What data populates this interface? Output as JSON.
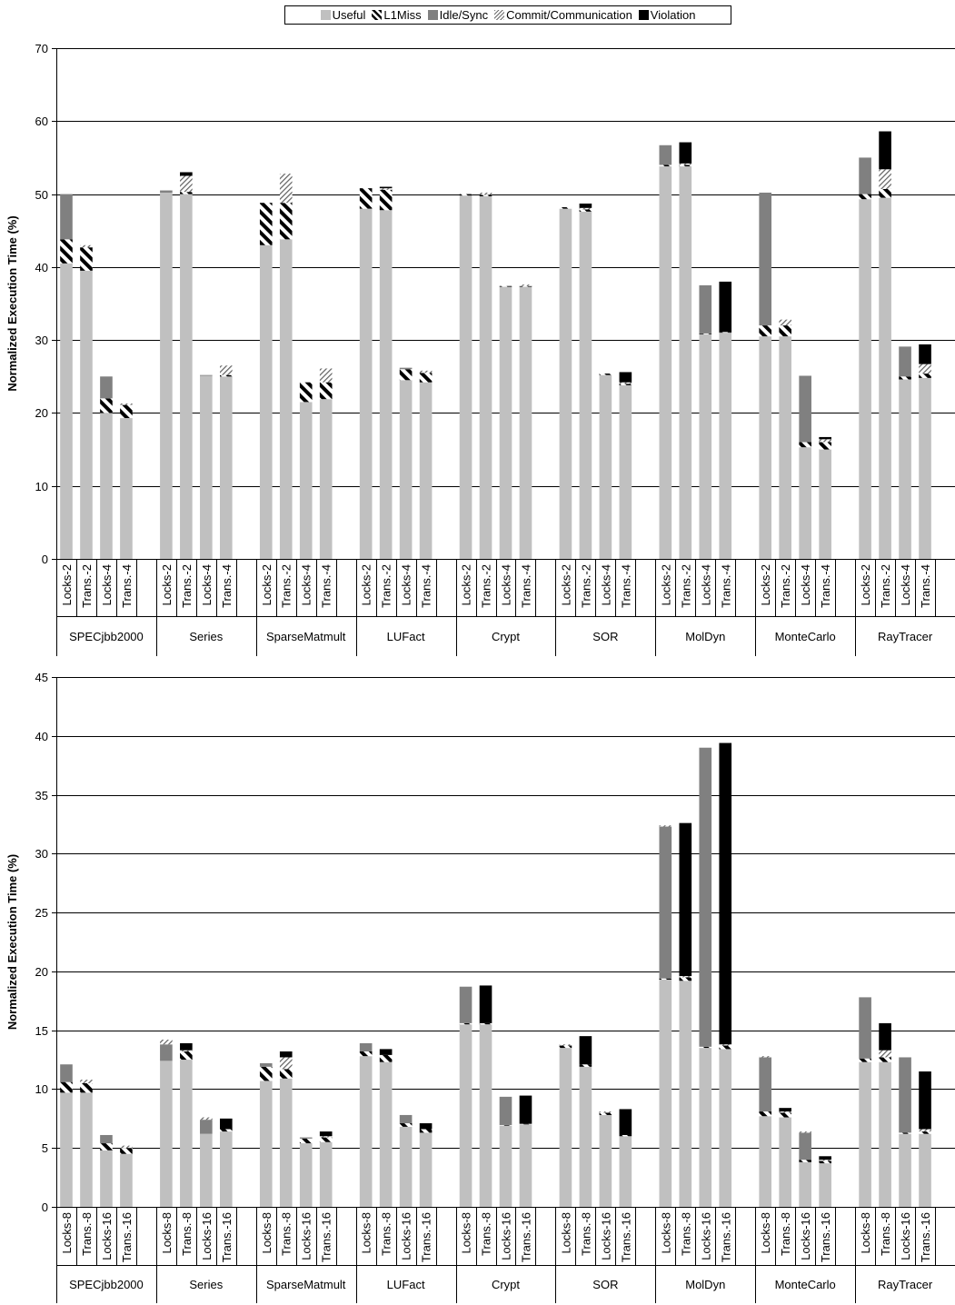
{
  "legend": {
    "items": [
      {
        "label": "Useful",
        "color": "#c0c0c0",
        "pattern": "solid"
      },
      {
        "label": "L1Miss",
        "color": "#000000",
        "pattern": "thick-diagonal"
      },
      {
        "label": "Idle/Sync",
        "color": "#808080",
        "pattern": "solid"
      },
      {
        "label": "Commit/Communication",
        "color": "#404040",
        "pattern": "thin-diagonal"
      },
      {
        "label": "Violation",
        "color": "#000000",
        "pattern": "solid"
      }
    ]
  },
  "chart_data": [
    {
      "type": "bar",
      "stacked": true,
      "ylabel": "Normalized Execution Time (%)",
      "ylim": [
        0,
        70
      ],
      "ytick_step": 10,
      "grid": true,
      "legend_position": "top-center",
      "series": [
        "Useful",
        "L1Miss",
        "Idle/Sync",
        "Commit/Communication",
        "Violation"
      ],
      "groups": [
        {
          "name": "SPECjbb2000",
          "bars": [
            {
              "label": "Locks-2",
              "values": [
                40.5,
                3.3,
                6.2,
                0,
                0
              ]
            },
            {
              "label": "Trans.-2",
              "values": [
                39.5,
                3.2,
                0,
                0.3,
                0
              ]
            },
            {
              "label": "Locks-4",
              "values": [
                20,
                2,
                3,
                0,
                0
              ]
            },
            {
              "label": "Trans.-4",
              "values": [
                19.3,
                1.8,
                0,
                0.2,
                0
              ]
            }
          ]
        },
        {
          "name": "Series",
          "bars": [
            {
              "label": "Locks-2",
              "values": [
                50.2,
                0,
                0.3,
                0,
                0
              ]
            },
            {
              "label": "Trans.-2",
              "values": [
                50,
                0.3,
                0,
                2.2,
                0.5
              ]
            },
            {
              "label": "Locks-4",
              "values": [
                25.1,
                0,
                0.1,
                0,
                0
              ]
            },
            {
              "label": "Trans.-4",
              "values": [
                25,
                0.2,
                0,
                1.3,
                0
              ]
            }
          ]
        },
        {
          "name": "SparseMatmult",
          "bars": [
            {
              "label": "Locks-2",
              "values": [
                43,
                5.8,
                0,
                0,
                0
              ]
            },
            {
              "label": "Trans.-2",
              "values": [
                43.8,
                5,
                0,
                4,
                0
              ]
            },
            {
              "label": "Locks-4",
              "values": [
                21.5,
                2.7,
                0,
                0,
                0
              ]
            },
            {
              "label": "Trans.-4",
              "values": [
                21.9,
                2.3,
                0,
                1.9,
                0
              ]
            }
          ]
        },
        {
          "name": "LUFact",
          "bars": [
            {
              "label": "Locks-2",
              "values": [
                48,
                2.8,
                0,
                0,
                0
              ]
            },
            {
              "label": "Trans.-2",
              "values": [
                47.8,
                2.8,
                0,
                0.2,
                0.2
              ]
            },
            {
              "label": "Locks-4",
              "values": [
                24.5,
                1.5,
                0.2,
                0,
                0
              ]
            },
            {
              "label": "Trans.-4",
              "values": [
                24.2,
                1.3,
                0,
                0.3,
                0
              ]
            }
          ]
        },
        {
          "name": "Crypt",
          "bars": [
            {
              "label": "Locks-2",
              "values": [
                49.8,
                0.2,
                0,
                0,
                0
              ]
            },
            {
              "label": "Trans.-2",
              "values": [
                49.7,
                0.2,
                0,
                0.3,
                0
              ]
            },
            {
              "label": "Locks-4",
              "values": [
                37.3,
                0.1,
                0,
                0,
                0
              ]
            },
            {
              "label": "Trans.-4",
              "values": [
                37.3,
                0.1,
                0,
                0.2,
                0
              ]
            }
          ]
        },
        {
          "name": "SOR",
          "bars": [
            {
              "label": "Locks-2",
              "values": [
                48,
                0.2,
                0,
                0,
                0
              ]
            },
            {
              "label": "Trans.-2",
              "values": [
                47.6,
                0.3,
                0,
                0.2,
                0.6
              ]
            },
            {
              "label": "Locks-4",
              "values": [
                25.2,
                0.2,
                0,
                0,
                0
              ]
            },
            {
              "label": "Trans.-4",
              "values": [
                23.8,
                0.2,
                0,
                0.2,
                1.4
              ]
            }
          ]
        },
        {
          "name": "MolDyn",
          "bars": [
            {
              "label": "Locks-2",
              "values": [
                53.8,
                0.2,
                2.7,
                0,
                0
              ]
            },
            {
              "label": "Trans.-2",
              "values": [
                53.8,
                0.2,
                0,
                0.2,
                2.9
              ]
            },
            {
              "label": "Locks-4",
              "values": [
                30.8,
                0.1,
                6.6,
                0,
                0
              ]
            },
            {
              "label": "Trans.-4",
              "values": [
                31,
                0.1,
                0,
                0,
                6.9
              ]
            }
          ]
        },
        {
          "name": "MonteCarlo",
          "bars": [
            {
              "label": "Locks-2",
              "values": [
                30.5,
                1.5,
                18.2,
                0,
                0
              ]
            },
            {
              "label": "Trans.-2",
              "values": [
                30.5,
                1.5,
                0,
                0.8,
                0
              ]
            },
            {
              "label": "Locks-4",
              "values": [
                15.3,
                0.7,
                9.1,
                0,
                0
              ]
            },
            {
              "label": "Trans.-4",
              "values": [
                15,
                1,
                0,
                0.4,
                0.3
              ]
            }
          ]
        },
        {
          "name": "RayTracer",
          "bars": [
            {
              "label": "Locks-2",
              "values": [
                49.3,
                0.7,
                5,
                0,
                0
              ]
            },
            {
              "label": "Trans.-2",
              "values": [
                49.5,
                1.2,
                0,
                2.7,
                5.2
              ]
            },
            {
              "label": "Locks-4",
              "values": [
                24.6,
                0.4,
                4.1,
                0,
                0
              ]
            },
            {
              "label": "Trans.-4",
              "values": [
                24.8,
                0.6,
                0,
                1.3,
                2.7
              ]
            }
          ]
        }
      ]
    },
    {
      "type": "bar",
      "stacked": true,
      "ylabel": "Normalized Execution Time (%)",
      "ylim": [
        0,
        45
      ],
      "ytick_step": 5,
      "grid": true,
      "series": [
        "Useful",
        "L1Miss",
        "Idle/Sync",
        "Commit/Communication",
        "Violation"
      ],
      "groups": [
        {
          "name": "SPECjbb2000",
          "bars": [
            {
              "label": "Locks-8",
              "values": [
                9.7,
                0.9,
                1.5,
                0,
                0
              ]
            },
            {
              "label": "Trans.-8",
              "values": [
                9.7,
                0.8,
                0,
                0.3,
                0
              ]
            },
            {
              "label": "Locks-16",
              "values": [
                4.8,
                0.6,
                0.7,
                0,
                0
              ]
            },
            {
              "label": "Trans.-16",
              "values": [
                4.5,
                0.5,
                0,
                0.2,
                0
              ]
            }
          ]
        },
        {
          "name": "Series",
          "bars": [
            {
              "label": "Locks-8",
              "values": [
                12.4,
                0,
                1.4,
                0.4,
                0
              ]
            },
            {
              "label": "Trans.-8",
              "values": [
                12.5,
                0.7,
                0,
                0.1,
                0.6
              ]
            },
            {
              "label": "Locks-16",
              "values": [
                6.2,
                0,
                1.2,
                0.2,
                0
              ]
            },
            {
              "label": "Trans.-16",
              "values": [
                6.4,
                0.2,
                0,
                0,
                0.9
              ]
            }
          ]
        },
        {
          "name": "SparseMatmult",
          "bars": [
            {
              "label": "Locks-8",
              "values": [
                10.7,
                1.2,
                0.3,
                0,
                0
              ]
            },
            {
              "label": "Trans.-8",
              "values": [
                10.9,
                0.8,
                0,
                1,
                0.5
              ]
            },
            {
              "label": "Locks-16",
              "values": [
                5.4,
                0.4,
                0.1,
                0,
                0
              ]
            },
            {
              "label": "Trans.-16",
              "values": [
                5.5,
                0.4,
                0,
                0.1,
                0.4
              ]
            }
          ]
        },
        {
          "name": "LUFact",
          "bars": [
            {
              "label": "Locks-8",
              "values": [
                12.8,
                0.4,
                0.7,
                0,
                0
              ]
            },
            {
              "label": "Trans.-8",
              "values": [
                12.3,
                0.6,
                0,
                0,
                0.5
              ]
            },
            {
              "label": "Locks-16",
              "values": [
                6.8,
                0.3,
                0.7,
                0,
                0
              ]
            },
            {
              "label": "Trans.-16",
              "values": [
                6.3,
                0.3,
                0,
                0,
                0.5
              ]
            }
          ]
        },
        {
          "name": "Crypt",
          "bars": [
            {
              "label": "Locks-8",
              "values": [
                15.5,
                0.1,
                3.1,
                0,
                0
              ]
            },
            {
              "label": "Trans.-8",
              "values": [
                15.5,
                0.1,
                0,
                0,
                3.2
              ]
            },
            {
              "label": "Locks-16",
              "values": [
                6.9,
                0.05,
                2.4,
                0,
                0
              ]
            },
            {
              "label": "Trans.-16",
              "values": [
                7,
                0.05,
                0,
                0,
                2.4
              ]
            }
          ]
        },
        {
          "name": "SOR",
          "bars": [
            {
              "label": "Locks-8",
              "values": [
                13.5,
                0.2,
                0,
                0.1,
                0
              ]
            },
            {
              "label": "Trans.-8",
              "values": [
                11.9,
                0.2,
                0,
                0,
                2.4
              ]
            },
            {
              "label": "Locks-16",
              "values": [
                7.8,
                0.2,
                0,
                0.1,
                0
              ]
            },
            {
              "label": "Trans.-16",
              "values": [
                6,
                0.1,
                0,
                0,
                2.2
              ]
            }
          ]
        },
        {
          "name": "MolDyn",
          "bars": [
            {
              "label": "Locks-8",
              "values": [
                19.3,
                0.1,
                12.9,
                0.1,
                0
              ]
            },
            {
              "label": "Trans.-8",
              "values": [
                19.2,
                0.3,
                0,
                0.1,
                13
              ]
            },
            {
              "label": "Locks-16",
              "values": [
                13.5,
                0.1,
                25.4,
                0,
                0
              ]
            },
            {
              "label": "Trans.-16",
              "values": [
                13.4,
                0.3,
                0,
                0.1,
                25.6
              ]
            }
          ]
        },
        {
          "name": "MonteCarlo",
          "bars": [
            {
              "label": "Locks-8",
              "values": [
                7.7,
                0.4,
                4.6,
                0.1,
                0
              ]
            },
            {
              "label": "Trans.-8",
              "values": [
                7.6,
                0.4,
                0,
                0.1,
                0.3
              ]
            },
            {
              "label": "Locks-16",
              "values": [
                3.8,
                0.2,
                2.3,
                0.1,
                0
              ]
            },
            {
              "label": "Trans.-16",
              "values": [
                3.7,
                0.2,
                0,
                0.1,
                0.3
              ]
            }
          ]
        },
        {
          "name": "RayTracer",
          "bars": [
            {
              "label": "Locks-8",
              "values": [
                12.3,
                0.3,
                5.2,
                0,
                0
              ]
            },
            {
              "label": "Trans.-8",
              "values": [
                12.3,
                0.4,
                0,
                0.6,
                2.3
              ]
            },
            {
              "label": "Locks-16",
              "values": [
                6.2,
                0.1,
                6.4,
                0,
                0
              ]
            },
            {
              "label": "Trans.-16",
              "values": [
                6.2,
                0.2,
                0,
                0.2,
                4.9
              ]
            }
          ]
        }
      ]
    }
  ]
}
